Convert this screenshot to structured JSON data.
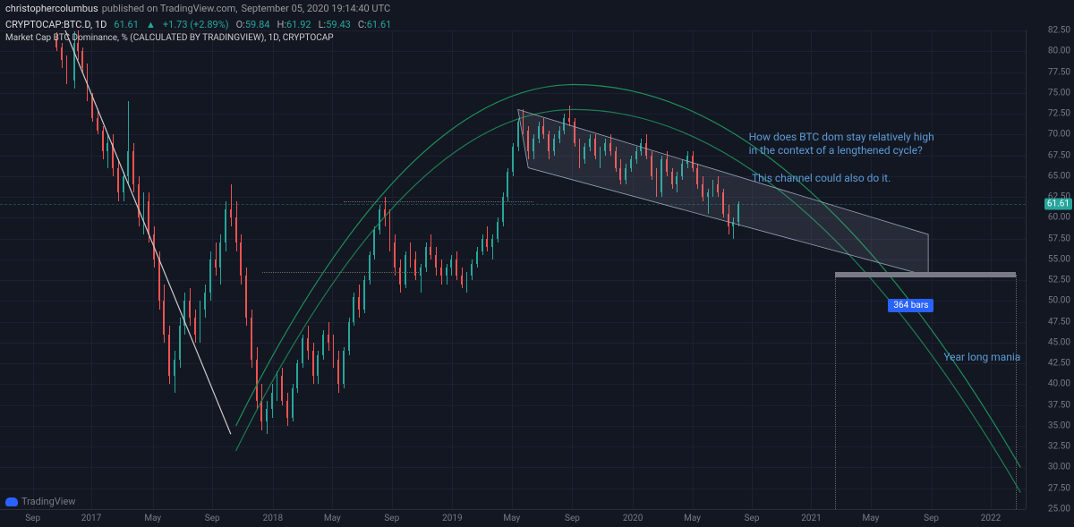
{
  "header": {
    "user": "christophercolumbus",
    "published_on": "published on TradingView.com,",
    "timestamp": "September 05, 2020 19:14:40 UTC"
  },
  "ohlc": {
    "symbol": "CRYPTOCAP:BTC.D, 1D",
    "last": "61.61",
    "change": "+1.73 (+2.89%)",
    "o_label": "O:",
    "o": "59.84",
    "h_label": "H:",
    "h": "61.92",
    "l_label": "L:",
    "l": "59.43",
    "c_label": "C:",
    "c": "61.61"
  },
  "legend": {
    "text": "Market Cap BTC Dominance, % (CALCULATED BY TRADINGVIEW), 1D, CRYPTOCAP"
  },
  "chart": {
    "type": "candlestick",
    "ylim": [
      25.0,
      82.5
    ],
    "ytick_step": 2.5,
    "yticks": [
      25.0,
      27.5,
      30.0,
      32.5,
      35.0,
      37.5,
      40.0,
      42.5,
      45.0,
      47.5,
      50.0,
      52.5,
      55.0,
      57.5,
      60.0,
      62.5,
      65.0,
      67.5,
      70.0,
      72.5,
      75.0,
      77.5,
      80.0,
      82.5
    ],
    "current_price": 61.61,
    "colors": {
      "up": "#26a69a",
      "down": "#ef5350",
      "background": "#131722",
      "grid": "#1c2030",
      "axis_text": "#787b86",
      "annotation": "#5b9bd5",
      "bars_label_bg": "#2962ff",
      "arc_color": "#1e8e5a",
      "channel_fill": "rgba(180,190,210,0.12)",
      "channel_stroke": "#9aa4b8",
      "range_bar": "#787b86",
      "trendline_white": "#cccccc",
      "dotted": "#777"
    },
    "x_range": {
      "start": "2016-07",
      "end": "2022-04"
    },
    "xticks": [
      {
        "label": "Sep",
        "t": 0.032
      },
      {
        "label": "2017",
        "t": 0.089
      },
      {
        "label": "May",
        "t": 0.149
      },
      {
        "label": "Sep",
        "t": 0.207
      },
      {
        "label": "2018",
        "t": 0.266
      },
      {
        "label": "May",
        "t": 0.324
      },
      {
        "label": "Sep",
        "t": 0.382
      },
      {
        "label": "2019",
        "t": 0.441
      },
      {
        "label": "May",
        "t": 0.499
      },
      {
        "label": "Sep",
        "t": 0.558
      },
      {
        "label": "2020",
        "t": 0.617
      },
      {
        "label": "May",
        "t": 0.675
      },
      {
        "label": "Sep",
        "t": 0.733
      },
      {
        "label": "2021",
        "t": 0.791
      },
      {
        "label": "May",
        "t": 0.849
      },
      {
        "label": "Sep",
        "t": 0.908
      },
      {
        "label": "2022",
        "t": 0.966
      }
    ],
    "annotations": [
      {
        "text": "How does BTC dom stay relatively high\nin the context of a lengthened cycle?",
        "t": 0.73,
        "v": 70.5
      },
      {
        "text": "This channel could also do it.",
        "t": 0.733,
        "v": 65.5
      },
      {
        "text": "Year long mania",
        "t": 0.92,
        "v": 44.0
      }
    ],
    "bars_label": {
      "text": "364 bars",
      "t": 0.866,
      "v": 50.3
    },
    "range_bar": {
      "t0": 0.814,
      "t1": 0.99,
      "v": 53.2
    },
    "arc": {
      "cx_t": 0.56,
      "peak_v": 76.0,
      "start_t": 0.23,
      "start_v": 35.0,
      "end_t": 0.995,
      "end_v": 30.0,
      "inner_offset": 3.0
    },
    "channel": {
      "points_upper": [
        {
          "t": 0.505,
          "v": 73.0
        },
        {
          "t": 0.905,
          "v": 58.0
        }
      ],
      "points_lower": [
        {
          "t": 0.515,
          "v": 66.0
        },
        {
          "t": 0.905,
          "v": 53.0
        }
      ]
    },
    "white_trendline": {
      "t0": 0.062,
      "v0": 83.0,
      "t1": 0.225,
      "v1": 34.0
    },
    "dotted_h": [
      {
        "t0": 0.335,
        "t1": 0.52,
        "v": 62.0
      },
      {
        "t0": 0.256,
        "t1": 0.41,
        "v": 53.5
      }
    ],
    "dotted_v": [
      {
        "t": 0.814,
        "v0": 53.2,
        "v1": 25.0
      },
      {
        "t": 0.99,
        "v0": 53.2,
        "v1": 25.0
      }
    ],
    "candles": [
      {
        "t": 0.055,
        "o": 81.5,
        "h": 82.3,
        "l": 80.0,
        "c": 80.5
      },
      {
        "t": 0.06,
        "o": 80.5,
        "h": 81.0,
        "l": 78.0,
        "c": 79.0
      },
      {
        "t": 0.065,
        "o": 79.0,
        "h": 79.5,
        "l": 76.0,
        "c": 76.5
      },
      {
        "t": 0.072,
        "o": 76.5,
        "h": 82.4,
        "l": 75.5,
        "c": 81.0
      },
      {
        "t": 0.076,
        "o": 81.0,
        "h": 82.5,
        "l": 79.0,
        "c": 80.0
      },
      {
        "t": 0.08,
        "o": 80.0,
        "h": 80.5,
        "l": 77.5,
        "c": 78.0
      },
      {
        "t": 0.085,
        "o": 78.0,
        "h": 78.5,
        "l": 74.0,
        "c": 74.5
      },
      {
        "t": 0.09,
        "o": 74.5,
        "h": 75.0,
        "l": 71.5,
        "c": 72.0
      },
      {
        "t": 0.095,
        "o": 72.0,
        "h": 73.0,
        "l": 70.0,
        "c": 70.5
      },
      {
        "t": 0.1,
        "o": 70.5,
        "h": 71.0,
        "l": 67.0,
        "c": 68.0
      },
      {
        "t": 0.105,
        "o": 68.0,
        "h": 70.0,
        "l": 66.0,
        "c": 69.0
      },
      {
        "t": 0.11,
        "o": 69.0,
        "h": 70.0,
        "l": 65.0,
        "c": 66.0
      },
      {
        "t": 0.115,
        "o": 66.0,
        "h": 67.0,
        "l": 62.0,
        "c": 63.0
      },
      {
        "t": 0.12,
        "o": 63.0,
        "h": 65.5,
        "l": 62.0,
        "c": 65.0
      },
      {
        "t": 0.125,
        "o": 65.0,
        "h": 74.0,
        "l": 64.0,
        "c": 68.0
      },
      {
        "t": 0.13,
        "o": 68.0,
        "h": 69.0,
        "l": 63.0,
        "c": 64.0
      },
      {
        "t": 0.135,
        "o": 64.0,
        "h": 65.0,
        "l": 59.0,
        "c": 60.0
      },
      {
        "t": 0.14,
        "o": 60.0,
        "h": 63.0,
        "l": 58.0,
        "c": 62.0
      },
      {
        "t": 0.145,
        "o": 62.0,
        "h": 63.0,
        "l": 57.0,
        "c": 58.0
      },
      {
        "t": 0.15,
        "o": 58.0,
        "h": 59.0,
        "l": 54.0,
        "c": 55.0
      },
      {
        "t": 0.155,
        "o": 55.0,
        "h": 56.0,
        "l": 49.0,
        "c": 50.0
      },
      {
        "t": 0.16,
        "o": 50.0,
        "h": 52.0,
        "l": 45.0,
        "c": 46.0
      },
      {
        "t": 0.165,
        "o": 46.0,
        "h": 47.0,
        "l": 40.0,
        "c": 41.0
      },
      {
        "t": 0.17,
        "o": 41.0,
        "h": 44.0,
        "l": 39.0,
        "c": 43.0
      },
      {
        "t": 0.175,
        "o": 43.0,
        "h": 48.0,
        "l": 42.0,
        "c": 47.0
      },
      {
        "t": 0.18,
        "o": 47.0,
        "h": 51.0,
        "l": 46.0,
        "c": 50.0
      },
      {
        "t": 0.185,
        "o": 50.0,
        "h": 51.5,
        "l": 47.0,
        "c": 48.0
      },
      {
        "t": 0.19,
        "o": 48.0,
        "h": 49.0,
        "l": 45.0,
        "c": 46.0
      },
      {
        "t": 0.195,
        "o": 46.0,
        "h": 50.0,
        "l": 45.0,
        "c": 49.0
      },
      {
        "t": 0.2,
        "o": 49.0,
        "h": 52.0,
        "l": 48.0,
        "c": 51.0
      },
      {
        "t": 0.205,
        "o": 51.0,
        "h": 56.0,
        "l": 50.0,
        "c": 55.0
      },
      {
        "t": 0.21,
        "o": 55.0,
        "h": 57.0,
        "l": 53.0,
        "c": 54.0
      },
      {
        "t": 0.215,
        "o": 54.0,
        "h": 58.0,
        "l": 52.0,
        "c": 57.0
      },
      {
        "t": 0.22,
        "o": 57.0,
        "h": 62.0,
        "l": 56.0,
        "c": 61.0
      },
      {
        "t": 0.225,
        "o": 61.0,
        "h": 64.0,
        "l": 59.0,
        "c": 60.0
      },
      {
        "t": 0.23,
        "o": 60.0,
        "h": 62.0,
        "l": 56.0,
        "c": 57.0
      },
      {
        "t": 0.235,
        "o": 57.0,
        "h": 58.0,
        "l": 52.0,
        "c": 53.0
      },
      {
        "t": 0.24,
        "o": 53.0,
        "h": 54.0,
        "l": 47.0,
        "c": 48.0
      },
      {
        "t": 0.245,
        "o": 48.0,
        "h": 49.0,
        "l": 42.0,
        "c": 43.0
      },
      {
        "t": 0.25,
        "o": 43.0,
        "h": 44.5,
        "l": 37.0,
        "c": 38.0
      },
      {
        "t": 0.255,
        "o": 38.0,
        "h": 40.0,
        "l": 34.5,
        "c": 35.5
      },
      {
        "t": 0.26,
        "o": 35.5,
        "h": 38.0,
        "l": 34.0,
        "c": 37.0
      },
      {
        "t": 0.265,
        "o": 37.0,
        "h": 40.0,
        "l": 36.0,
        "c": 39.0
      },
      {
        "t": 0.27,
        "o": 39.0,
        "h": 41.5,
        "l": 38.0,
        "c": 41.0
      },
      {
        "t": 0.275,
        "o": 41.0,
        "h": 42.0,
        "l": 37.5,
        "c": 38.0
      },
      {
        "t": 0.28,
        "o": 38.0,
        "h": 39.0,
        "l": 35.0,
        "c": 36.0
      },
      {
        "t": 0.285,
        "o": 36.0,
        "h": 40.0,
        "l": 35.5,
        "c": 39.5
      },
      {
        "t": 0.29,
        "o": 39.5,
        "h": 43.0,
        "l": 39.0,
        "c": 42.5
      },
      {
        "t": 0.295,
        "o": 42.5,
        "h": 46.0,
        "l": 42.0,
        "c": 45.5
      },
      {
        "t": 0.3,
        "o": 45.5,
        "h": 47.0,
        "l": 43.0,
        "c": 44.0
      },
      {
        "t": 0.305,
        "o": 44.0,
        "h": 45.0,
        "l": 40.0,
        "c": 41.0
      },
      {
        "t": 0.31,
        "o": 41.0,
        "h": 44.0,
        "l": 40.0,
        "c": 43.5
      },
      {
        "t": 0.315,
        "o": 43.5,
        "h": 46.5,
        "l": 43.0,
        "c": 46.0
      },
      {
        "t": 0.32,
        "o": 46.0,
        "h": 47.5,
        "l": 44.0,
        "c": 45.0
      },
      {
        "t": 0.325,
        "o": 45.0,
        "h": 46.0,
        "l": 42.0,
        "c": 43.0
      },
      {
        "t": 0.33,
        "o": 43.0,
        "h": 44.0,
        "l": 39.0,
        "c": 40.0
      },
      {
        "t": 0.335,
        "o": 40.0,
        "h": 44.5,
        "l": 39.5,
        "c": 44.0
      },
      {
        "t": 0.34,
        "o": 44.0,
        "h": 48.0,
        "l": 43.5,
        "c": 47.5
      },
      {
        "t": 0.345,
        "o": 47.5,
        "h": 51.0,
        "l": 47.0,
        "c": 50.5
      },
      {
        "t": 0.35,
        "o": 50.5,
        "h": 52.0,
        "l": 48.0,
        "c": 49.0
      },
      {
        "t": 0.355,
        "o": 49.0,
        "h": 53.0,
        "l": 48.5,
        "c": 52.5
      },
      {
        "t": 0.36,
        "o": 52.5,
        "h": 56.0,
        "l": 52.0,
        "c": 55.5
      },
      {
        "t": 0.365,
        "o": 55.5,
        "h": 59.0,
        "l": 55.0,
        "c": 58.5
      },
      {
        "t": 0.37,
        "o": 58.5,
        "h": 61.5,
        "l": 58.0,
        "c": 61.0
      },
      {
        "t": 0.375,
        "o": 61.0,
        "h": 62.5,
        "l": 59.0,
        "c": 60.0
      },
      {
        "t": 0.38,
        "o": 60.0,
        "h": 61.0,
        "l": 56.0,
        "c": 57.0
      },
      {
        "t": 0.385,
        "o": 57.0,
        "h": 58.0,
        "l": 53.0,
        "c": 54.0
      },
      {
        "t": 0.39,
        "o": 54.0,
        "h": 55.0,
        "l": 51.0,
        "c": 52.0
      },
      {
        "t": 0.395,
        "o": 52.0,
        "h": 56.0,
        "l": 51.5,
        "c": 55.5
      },
      {
        "t": 0.4,
        "o": 55.5,
        "h": 57.0,
        "l": 54.0,
        "c": 55.0
      },
      {
        "t": 0.405,
        "o": 55.0,
        "h": 56.0,
        "l": 52.5,
        "c": 53.0
      },
      {
        "t": 0.41,
        "o": 53.0,
        "h": 54.5,
        "l": 51.0,
        "c": 54.0
      },
      {
        "t": 0.415,
        "o": 54.0,
        "h": 57.0,
        "l": 53.5,
        "c": 56.5
      },
      {
        "t": 0.42,
        "o": 56.5,
        "h": 58.0,
        "l": 55.0,
        "c": 55.5
      },
      {
        "t": 0.425,
        "o": 55.5,
        "h": 56.5,
        "l": 53.0,
        "c": 54.0
      },
      {
        "t": 0.43,
        "o": 54.0,
        "h": 55.0,
        "l": 52.0,
        "c": 53.0
      },
      {
        "t": 0.435,
        "o": 53.0,
        "h": 54.5,
        "l": 52.0,
        "c": 54.0
      },
      {
        "t": 0.44,
        "o": 54.0,
        "h": 55.5,
        "l": 53.0,
        "c": 55.0
      },
      {
        "t": 0.445,
        "o": 55.0,
        "h": 56.0,
        "l": 52.5,
        "c": 53.0
      },
      {
        "t": 0.45,
        "o": 53.0,
        "h": 54.0,
        "l": 51.5,
        "c": 52.0
      },
      {
        "t": 0.455,
        "o": 52.0,
        "h": 53.5,
        "l": 51.0,
        "c": 53.0
      },
      {
        "t": 0.46,
        "o": 53.0,
        "h": 55.0,
        "l": 52.5,
        "c": 54.5
      },
      {
        "t": 0.465,
        "o": 54.5,
        "h": 56.5,
        "l": 54.0,
        "c": 56.0
      },
      {
        "t": 0.47,
        "o": 56.0,
        "h": 58.0,
        "l": 55.5,
        "c": 57.5
      },
      {
        "t": 0.475,
        "o": 57.5,
        "h": 59.0,
        "l": 56.0,
        "c": 56.5
      },
      {
        "t": 0.48,
        "o": 56.5,
        "h": 58.0,
        "l": 55.0,
        "c": 57.5
      },
      {
        "t": 0.485,
        "o": 57.5,
        "h": 60.0,
        "l": 57.0,
        "c": 59.5
      },
      {
        "t": 0.49,
        "o": 59.5,
        "h": 63.0,
        "l": 59.0,
        "c": 62.5
      },
      {
        "t": 0.495,
        "o": 62.5,
        "h": 66.0,
        "l": 62.0,
        "c": 65.5
      },
      {
        "t": 0.5,
        "o": 65.5,
        "h": 69.0,
        "l": 65.0,
        "c": 68.5
      },
      {
        "t": 0.505,
        "o": 68.5,
        "h": 72.0,
        "l": 68.0,
        "c": 71.5
      },
      {
        "t": 0.51,
        "o": 71.5,
        "h": 73.0,
        "l": 70.0,
        "c": 70.5
      },
      {
        "t": 0.515,
        "o": 70.5,
        "h": 71.0,
        "l": 67.0,
        "c": 68.0
      },
      {
        "t": 0.52,
        "o": 68.0,
        "h": 70.0,
        "l": 67.0,
        "c": 69.5
      },
      {
        "t": 0.525,
        "o": 69.5,
        "h": 71.5,
        "l": 69.0,
        "c": 71.0
      },
      {
        "t": 0.53,
        "o": 71.0,
        "h": 72.0,
        "l": 69.5,
        "c": 70.0
      },
      {
        "t": 0.535,
        "o": 70.0,
        "h": 70.5,
        "l": 67.0,
        "c": 68.0
      },
      {
        "t": 0.54,
        "o": 68.0,
        "h": 70.0,
        "l": 67.5,
        "c": 69.5
      },
      {
        "t": 0.545,
        "o": 69.5,
        "h": 71.0,
        "l": 69.0,
        "c": 70.5
      },
      {
        "t": 0.55,
        "o": 70.5,
        "h": 72.5,
        "l": 70.0,
        "c": 72.0
      },
      {
        "t": 0.555,
        "o": 72.0,
        "h": 73.5,
        "l": 71.0,
        "c": 71.5
      },
      {
        "t": 0.56,
        "o": 71.5,
        "h": 72.0,
        "l": 68.5,
        "c": 69.0
      },
      {
        "t": 0.565,
        "o": 69.0,
        "h": 69.5,
        "l": 66.0,
        "c": 67.0
      },
      {
        "t": 0.57,
        "o": 67.0,
        "h": 69.0,
        "l": 66.5,
        "c": 68.5
      },
      {
        "t": 0.575,
        "o": 68.5,
        "h": 70.0,
        "l": 68.0,
        "c": 69.5
      },
      {
        "t": 0.58,
        "o": 69.5,
        "h": 70.0,
        "l": 67.0,
        "c": 67.5
      },
      {
        "t": 0.585,
        "o": 67.5,
        "h": 68.5,
        "l": 66.0,
        "c": 68.0
      },
      {
        "t": 0.59,
        "o": 68.0,
        "h": 69.5,
        "l": 67.5,
        "c": 69.0
      },
      {
        "t": 0.595,
        "o": 69.0,
        "h": 70.0,
        "l": 67.5,
        "c": 68.0
      },
      {
        "t": 0.6,
        "o": 68.0,
        "h": 68.5,
        "l": 65.5,
        "c": 66.0
      },
      {
        "t": 0.605,
        "o": 66.0,
        "h": 67.0,
        "l": 64.0,
        "c": 64.5
      },
      {
        "t": 0.61,
        "o": 64.5,
        "h": 66.5,
        "l": 64.0,
        "c": 66.0
      },
      {
        "t": 0.615,
        "o": 66.0,
        "h": 67.5,
        "l": 65.5,
        "c": 67.0
      },
      {
        "t": 0.62,
        "o": 67.0,
        "h": 68.5,
        "l": 66.5,
        "c": 68.0
      },
      {
        "t": 0.625,
        "o": 68.0,
        "h": 69.5,
        "l": 67.5,
        "c": 69.0
      },
      {
        "t": 0.63,
        "o": 69.0,
        "h": 70.0,
        "l": 67.0,
        "c": 67.5
      },
      {
        "t": 0.635,
        "o": 67.5,
        "h": 68.0,
        "l": 64.5,
        "c": 65.0
      },
      {
        "t": 0.64,
        "o": 65.0,
        "h": 66.0,
        "l": 62.5,
        "c": 63.0
      },
      {
        "t": 0.645,
        "o": 63.0,
        "h": 67.5,
        "l": 62.5,
        "c": 67.0
      },
      {
        "t": 0.65,
        "o": 67.0,
        "h": 68.0,
        "l": 65.0,
        "c": 65.5
      },
      {
        "t": 0.655,
        "o": 65.5,
        "h": 66.0,
        "l": 63.5,
        "c": 64.0
      },
      {
        "t": 0.66,
        "o": 64.0,
        "h": 65.5,
        "l": 63.0,
        "c": 65.0
      },
      {
        "t": 0.665,
        "o": 65.0,
        "h": 67.0,
        "l": 64.5,
        "c": 66.5
      },
      {
        "t": 0.67,
        "o": 66.5,
        "h": 68.0,
        "l": 66.0,
        "c": 67.5
      },
      {
        "t": 0.675,
        "o": 67.5,
        "h": 68.0,
        "l": 65.5,
        "c": 66.0
      },
      {
        "t": 0.68,
        "o": 66.0,
        "h": 66.5,
        "l": 63.5,
        "c": 64.0
      },
      {
        "t": 0.685,
        "o": 64.0,
        "h": 65.0,
        "l": 62.0,
        "c": 62.5
      },
      {
        "t": 0.69,
        "o": 62.5,
        "h": 63.5,
        "l": 60.5,
        "c": 63.0
      },
      {
        "t": 0.695,
        "o": 63.0,
        "h": 64.5,
        "l": 62.5,
        "c": 64.0
      },
      {
        "t": 0.7,
        "o": 64.0,
        "h": 65.0,
        "l": 62.5,
        "c": 63.0
      },
      {
        "t": 0.705,
        "o": 63.0,
        "h": 63.5,
        "l": 60.0,
        "c": 60.5
      },
      {
        "t": 0.71,
        "o": 60.5,
        "h": 61.5,
        "l": 58.0,
        "c": 59.0
      },
      {
        "t": 0.715,
        "o": 59.0,
        "h": 60.0,
        "l": 57.5,
        "c": 59.5
      },
      {
        "t": 0.72,
        "o": 59.5,
        "h": 62.0,
        "l": 59.0,
        "c": 61.61
      }
    ]
  },
  "branding": {
    "text": "TradingView"
  }
}
